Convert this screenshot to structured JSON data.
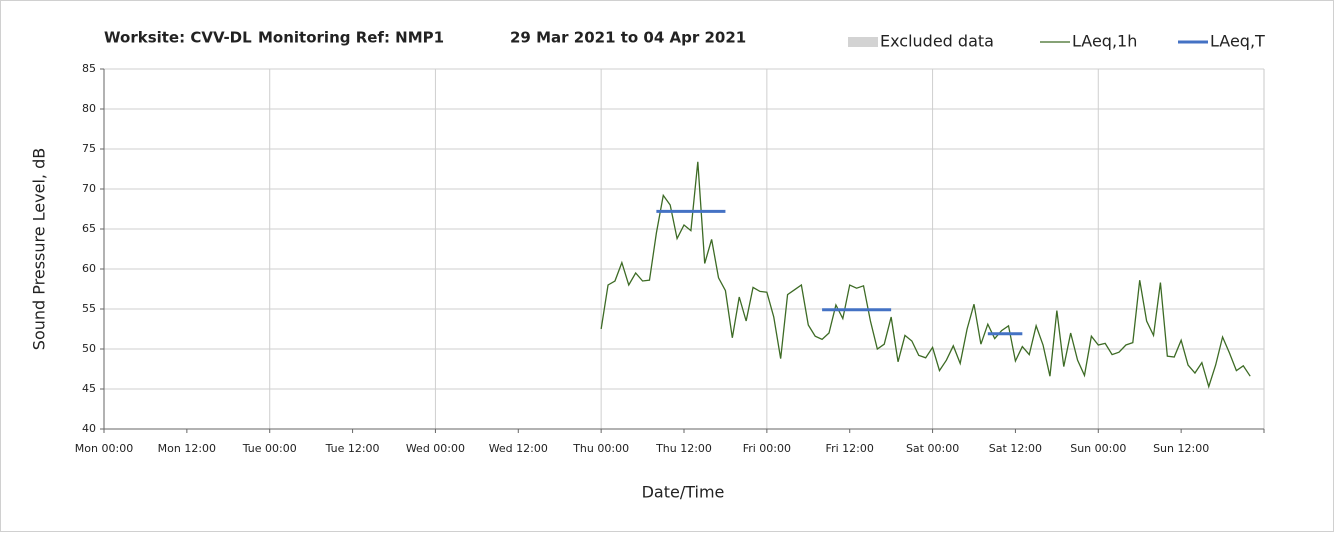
{
  "chart_data": {
    "type": "line",
    "title_parts": [
      "Worksite: CVV-DL",
      "Monitoring Ref: NMP1",
      "29 Mar 2021 to 04 Apr 2021"
    ],
    "x_label": "Date/Time",
    "y_label": "Sound Pressure Level, dB",
    "xlim": [
      0,
      168
    ],
    "ylim": [
      40,
      85
    ],
    "xticks": [
      {
        "value": 0,
        "label": "Mon 00:00"
      },
      {
        "value": 12,
        "label": "Mon 12:00"
      },
      {
        "value": 24,
        "label": "Tue 00:00"
      },
      {
        "value": 36,
        "label": "Tue 12:00"
      },
      {
        "value": 48,
        "label": "Wed 00:00"
      },
      {
        "value": 60,
        "label": "Wed 12:00"
      },
      {
        "value": 72,
        "label": "Thu 00:00"
      },
      {
        "value": 84,
        "label": "Thu 12:00"
      },
      {
        "value": 96,
        "label": "Fri 00:00"
      },
      {
        "value": 108,
        "label": "Fri 12:00"
      },
      {
        "value": 120,
        "label": "Sat 00:00"
      },
      {
        "value": 132,
        "label": "Sat 12:00"
      },
      {
        "value": 144,
        "label": "Sun 00:00"
      },
      {
        "value": 156,
        "label": "Sun 12:00"
      }
    ],
    "yticks": [
      40,
      45,
      50,
      55,
      60,
      65,
      70,
      75,
      80,
      85
    ],
    "grid": true,
    "legend": "top-right",
    "series": [
      {
        "name": "Excluded data",
        "color": "#d3d3d3",
        "x": [],
        "values": []
      },
      {
        "name": "LAeq,1h",
        "color": "#3d6b25",
        "x": [
          72,
          73,
          74,
          75,
          76,
          77,
          78,
          79,
          80,
          81,
          82,
          83,
          84,
          85,
          86,
          87,
          88,
          89,
          90,
          91,
          92,
          93,
          94,
          95,
          96,
          97,
          98,
          99,
          100,
          101,
          102,
          103,
          104,
          105,
          106,
          107,
          108,
          109,
          110,
          111,
          112,
          113,
          114,
          115,
          116,
          117,
          118,
          119,
          120,
          121,
          122,
          123,
          124,
          125,
          126,
          127,
          128,
          129,
          130,
          131,
          132,
          133,
          134,
          135,
          136,
          137,
          138,
          139,
          140,
          141,
          142,
          143,
          144,
          145,
          146,
          147,
          148,
          149,
          150,
          151,
          152,
          153,
          154,
          155,
          156,
          157,
          158,
          159,
          160,
          161,
          162,
          163,
          164,
          165,
          166
        ],
        "values": [
          52.5,
          58,
          58.5,
          60.8,
          58,
          59.5,
          58.5,
          58.6,
          64.5,
          69.2,
          68,
          63.8,
          65.5,
          64.8,
          73.4,
          60.7,
          63.7,
          58.9,
          57.3,
          51.4,
          56.5,
          53.5,
          57.7,
          57.2,
          57.1,
          54,
          48.8,
          56.8,
          57.4,
          58,
          53,
          51.6,
          51.2,
          52,
          55.5,
          53.8,
          58,
          57.6,
          57.9,
          53.5,
          50,
          50.6,
          54,
          48.4,
          51.7,
          51,
          49.2,
          48.9,
          50.2,
          47.3,
          48.6,
          50.4,
          48.2,
          52.5,
          55.6,
          50.6,
          53.1,
          51.3,
          52.3,
          52.9,
          48.5,
          50.3,
          49.3,
          52.9,
          50.5,
          46.6,
          54.8,
          47.8,
          52,
          48.6,
          46.7,
          51.6,
          50.5,
          50.7,
          49.3,
          49.6,
          50.5,
          50.8,
          58.6,
          53.5,
          51.7,
          58.3,
          49.1,
          49,
          51.1,
          48,
          47,
          48.3,
          45.3,
          48,
          51.5,
          49.5,
          47.3,
          47.9,
          46.6
        ]
      },
      {
        "name": "LAeq,T",
        "color": "#4472c4",
        "x": [
          80,
          90,
          97,
          104,
          114,
          121,
          128,
          133
        ],
        "values": [
          67.2,
          67.2,
          null,
          54.9,
          54.9,
          null,
          51.9,
          51.9
        ]
      }
    ]
  }
}
